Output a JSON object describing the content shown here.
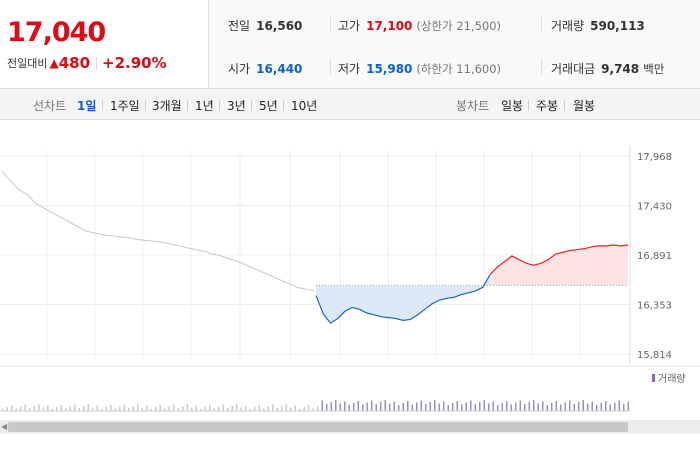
{
  "price": {
    "current": "17,040",
    "change_label": "전일대비",
    "change_icon": "up-triangle",
    "change_value": "480",
    "change_percent": "+2.90%"
  },
  "stats": {
    "prev_close": {
      "label": "전일",
      "value": "16,560"
    },
    "high": {
      "label": "고가",
      "value": "17,100",
      "sub": "(상한가 21,500)"
    },
    "volume": {
      "label": "거래량",
      "value": "590,113"
    },
    "open": {
      "label": "시가",
      "value": "16,440"
    },
    "low": {
      "label": "저가",
      "value": "15,980",
      "sub": "(하한가 11,600)"
    },
    "trade_amount": {
      "label": "거래대금",
      "value": "9,748",
      "unit": "백만"
    }
  },
  "toolbar": {
    "line_chart_label": "선차트",
    "line_periods": [
      "1일",
      "1주일",
      "3개월",
      "1년",
      "3년",
      "5년",
      "10년"
    ],
    "active_period": "1일",
    "candle_chart_label": "봉차트",
    "candle_periods": [
      "일봉",
      "주봉",
      "월봉"
    ]
  },
  "chart_data": {
    "type": "line",
    "y_ticks": [
      "17,968",
      "17,430",
      "16,891",
      "16,353",
      "15,814"
    ],
    "ylim": [
      15814,
      17968
    ],
    "baseline": 16560,
    "volume_legend": "거래량",
    "colors": {
      "up": "#e8202a",
      "down": "#1e64d0",
      "prev_day": "#c8c8c8",
      "up_fill": "#fde3e4",
      "down_fill": "#dde9f8"
    },
    "prev_day_series": [
      17800,
      17700,
      17600,
      17550,
      17450,
      17400,
      17350,
      17300,
      17250,
      17200,
      17150,
      17130,
      17110,
      17100,
      17090,
      17080,
      17060,
      17050,
      17040,
      17030,
      17010,
      16990,
      16970,
      16950,
      16930,
      16900,
      16880,
      16850,
      16820,
      16780,
      16740,
      16700,
      16660,
      16620,
      16580,
      16540,
      16520,
      16500
    ],
    "today_series": [
      16450,
      16250,
      16150,
      16200,
      16280,
      16320,
      16300,
      16260,
      16240,
      16220,
      16210,
      16200,
      16180,
      16190,
      16240,
      16300,
      16360,
      16400,
      16420,
      16430,
      16460,
      16480,
      16500,
      16540,
      16680,
      16760,
      16820,
      16880,
      16840,
      16800,
      16780,
      16800,
      16840,
      16900,
      16920,
      16940,
      16950,
      16960,
      16980,
      16990,
      16990,
      17000,
      16990,
      17000
    ]
  }
}
